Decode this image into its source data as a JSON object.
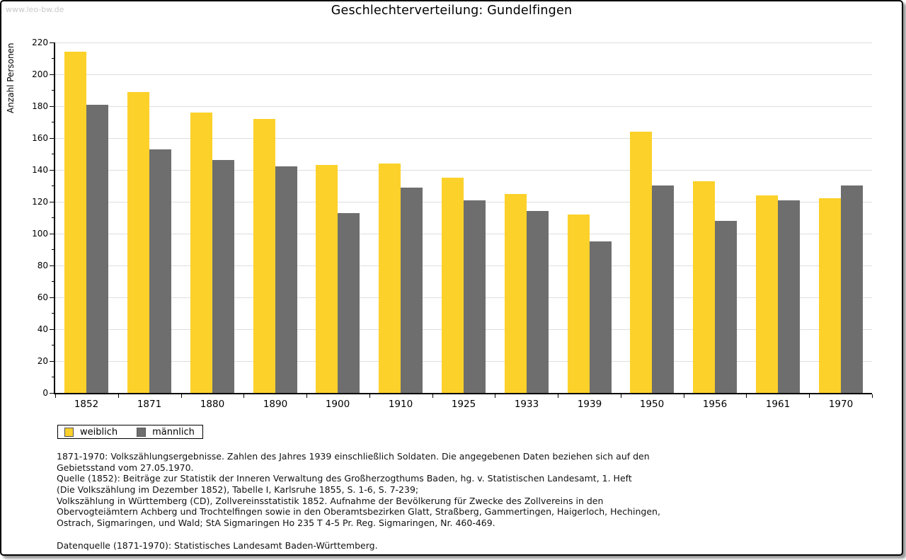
{
  "watermark": "www.leo-bw.de",
  "header": {
    "title": "Geschlechterverteilung: Gundelfingen"
  },
  "chart_data": {
    "type": "bar",
    "title": "Geschlechterverteilung: Gundelfingen",
    "xlabel": "",
    "ylabel": "Anzahl Personen",
    "categories": [
      "1852",
      "1871",
      "1880",
      "1890",
      "1900",
      "1910",
      "1925",
      "1933",
      "1939",
      "1950",
      "1956",
      "1961",
      "1970"
    ],
    "series": [
      {
        "name": "weiblich",
        "color": "#fcd12a",
        "values": [
          214,
          189,
          176,
          172,
          143,
          144,
          135,
          125,
          112,
          164,
          133,
          124,
          122
        ]
      },
      {
        "name": "männlich",
        "color": "#6e6e6e",
        "values": [
          181,
          153,
          146,
          142,
          113,
          129,
          121,
          114,
          95,
          130,
          108,
          121,
          130
        ]
      }
    ],
    "ylim": [
      0,
      220
    ],
    "ytick_step": 20,
    "yminor_step": 10,
    "grid": true,
    "gridline_color": "#dedede",
    "legend_position": "bottom-left"
  },
  "footnotes": {
    "lines": [
      "1871-1970: Volkszählungsergebnisse. Zahlen des Jahres 1939 einschließlich Soldaten. Die angegebenen Daten beziehen sich auf den",
      "Gebietsstand vom 27.05.1970.",
      "Quelle (1852): Beiträge zur Statistik der Inneren Verwaltung des Großherzogthums Baden, hg. v. Statistischen Landesamt, 1. Heft",
      "(Die Volkszählung im Dezember 1852), Tabelle I, Karlsruhe 1855, S. 1-6, S. 7-239;",
      "Volkszählung in Württemberg (CD), Zollvereinsstatistik 1852. Aufnahme der Bevölkerung für Zwecke des Zollvereins in den",
      "Obervogteiämtern Achberg und Trochtelfingen sowie in den Oberamtsbezirken Glatt, Straßberg, Gammertingen, Haigerloch, Hechingen,",
      "Ostrach, Sigmaringen, und Wald; StA Sigmaringen Ho 235 T 4-5 Pr. Reg. Sigmaringen, Nr. 460-469.",
      "",
      "Datenquelle (1871-1970): Statistisches Landesamt Baden-Württemberg."
    ]
  }
}
